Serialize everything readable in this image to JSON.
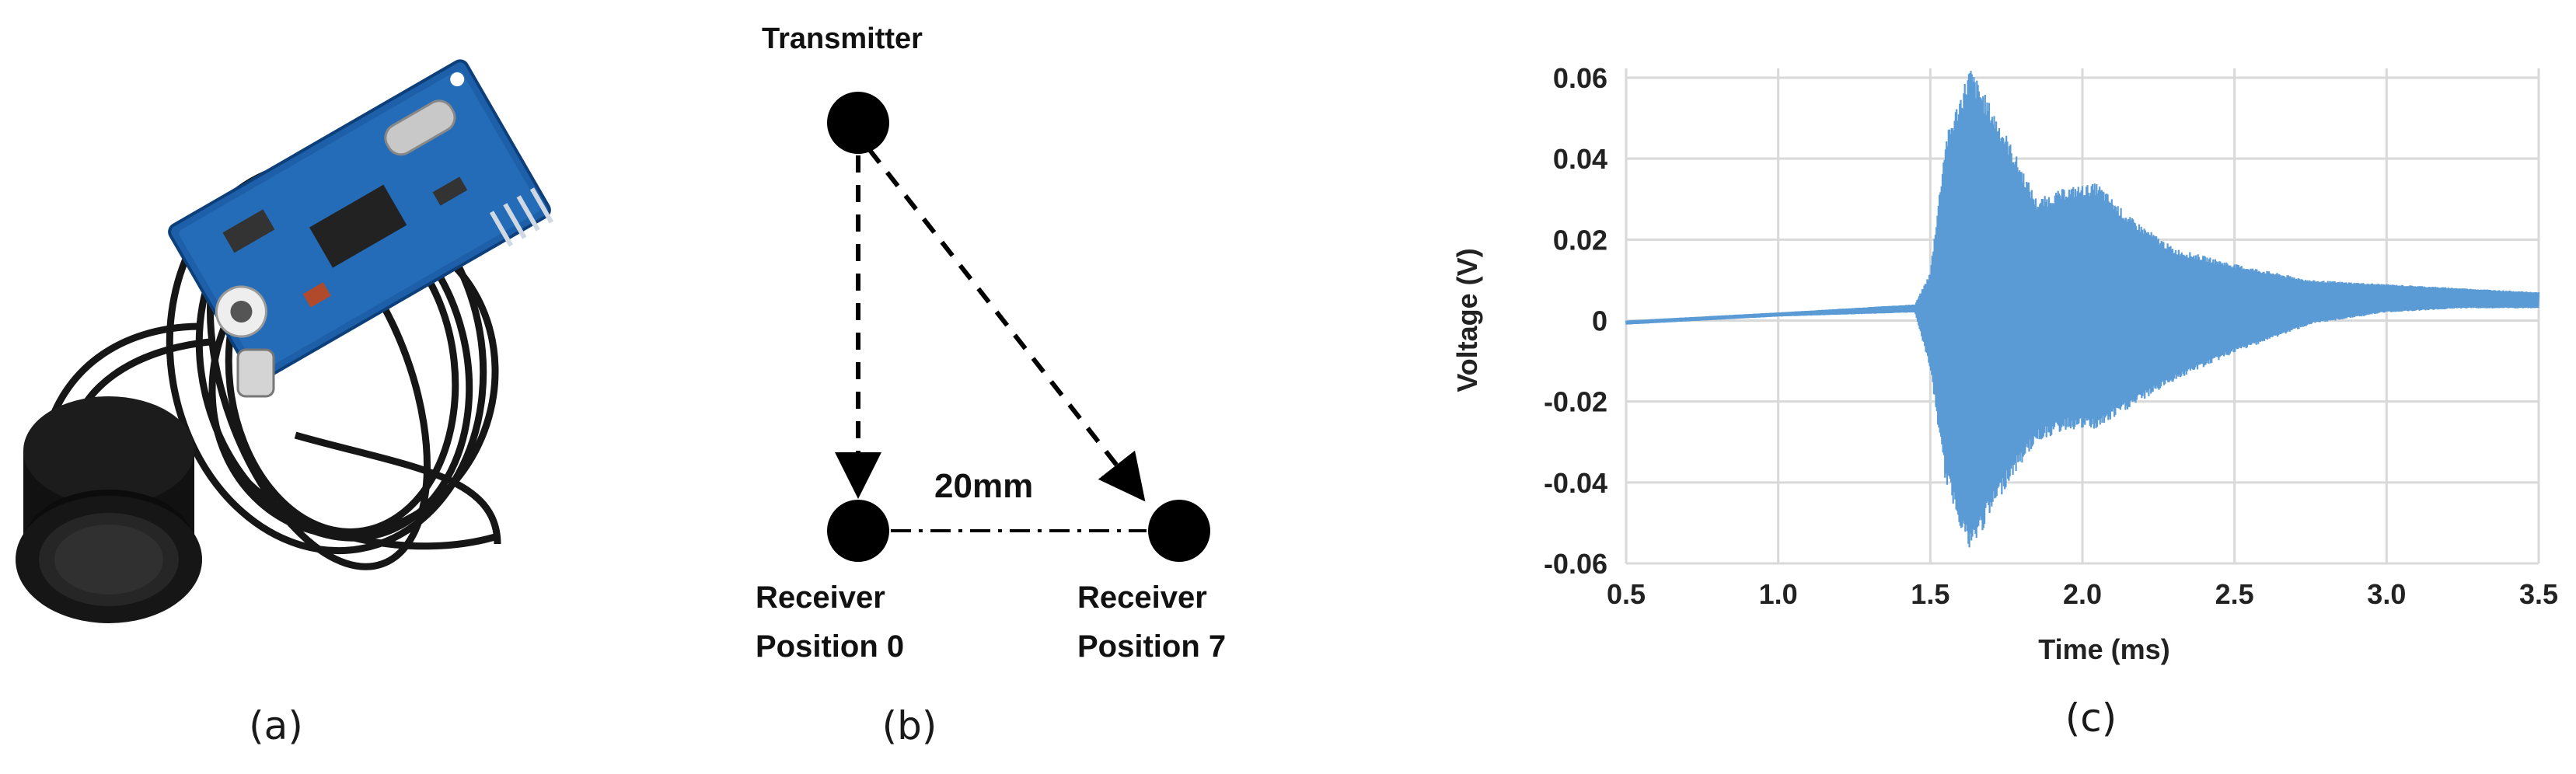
{
  "figure": {
    "panel_a": {
      "caption": "(a)",
      "photo_subject": "ultrasonic sensor module with cable and transducer"
    },
    "panel_b": {
      "caption": "(b)",
      "transmitter_label": "Transmitter",
      "receiver_0_line1": "Receiver",
      "receiver_0_line2": "Position 0",
      "receiver_7_line1": "Receiver",
      "receiver_7_line2": "Position 7",
      "distance_label": "20mm"
    },
    "panel_c": {
      "caption": "(c)"
    }
  },
  "chart_data": {
    "type": "line",
    "title": "",
    "xlabel": "Time  (ms)",
    "ylabel": "Voltage (V)",
    "xlim": [
      0.5,
      3.5
    ],
    "ylim": [
      -0.06,
      0.06
    ],
    "x_ticks": [
      "0.5",
      "1.0",
      "1.5",
      "2.0",
      "2.5",
      "3.0",
      "3.5"
    ],
    "y_ticks": [
      "0.06",
      "0.04",
      "0.02",
      "0",
      "-0.02",
      "-0.04",
      "-0.06"
    ],
    "grid": true,
    "series": [
      {
        "color": "#5b9bd5",
        "envelope_x": [
          0.5,
          1.0,
          1.45,
          1.5,
          1.55,
          1.63,
          1.75,
          1.85,
          1.95,
          2.05,
          2.15,
          2.3,
          2.5,
          2.75,
          3.0,
          3.25,
          3.5
        ],
        "envelope_upper": [
          0.0,
          0.002,
          0.004,
          0.012,
          0.045,
          0.063,
          0.046,
          0.03,
          0.033,
          0.034,
          0.026,
          0.018,
          0.014,
          0.01,
          0.009,
          0.008,
          0.007
        ],
        "envelope_lower": [
          -0.001,
          0.001,
          0.002,
          -0.012,
          -0.04,
          -0.058,
          -0.041,
          -0.03,
          -0.027,
          -0.027,
          -0.022,
          -0.015,
          -0.008,
          -0.001,
          0.002,
          0.003,
          0.003
        ]
      }
    ]
  }
}
